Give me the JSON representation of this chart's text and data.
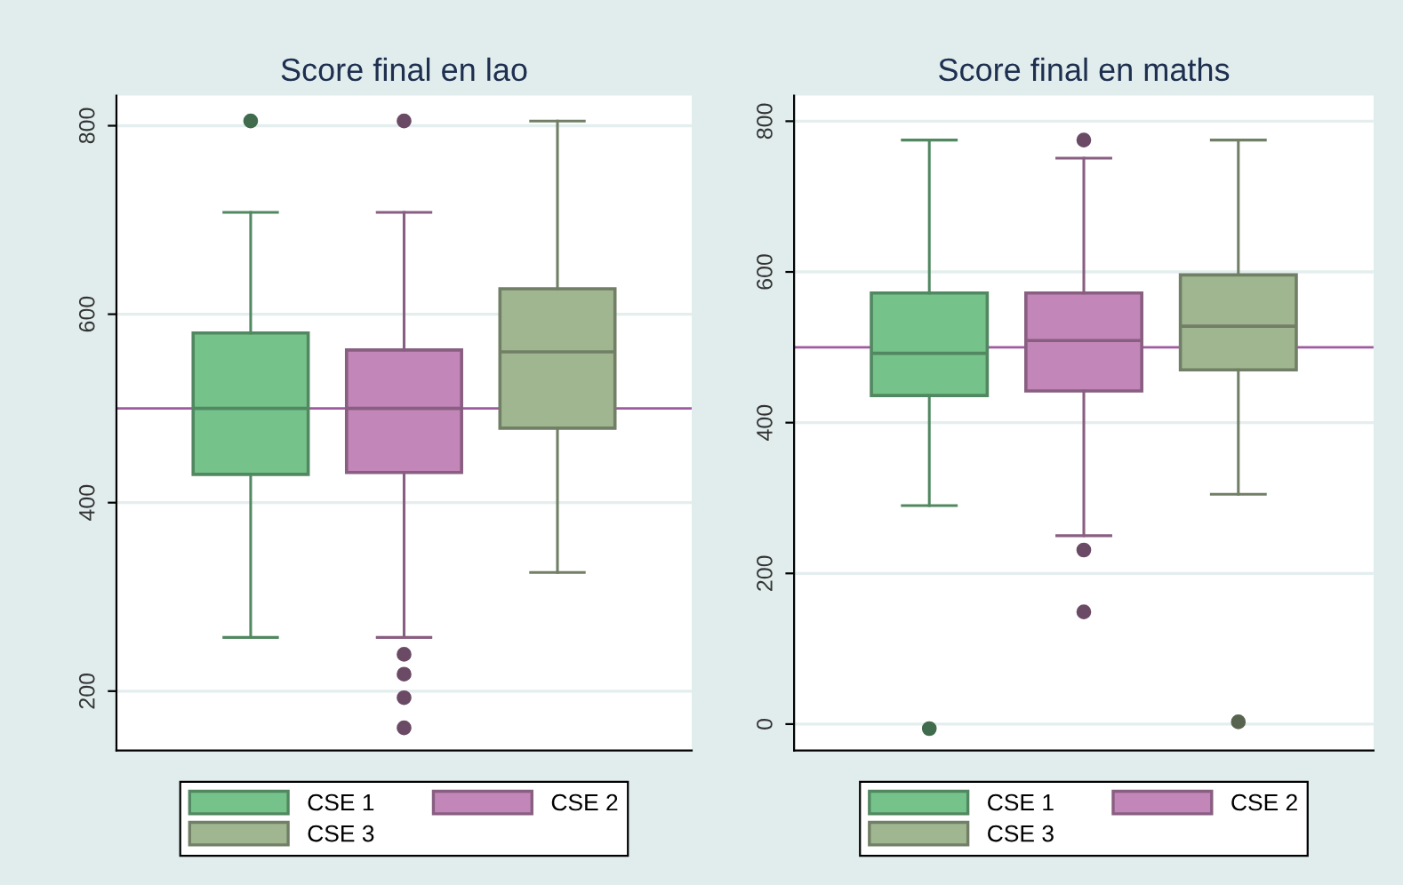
{
  "chart_data": [
    {
      "type": "box",
      "title": "Score final en lao",
      "categories": [
        null
      ],
      "ylim": [
        137,
        832
      ],
      "yticks": [
        200,
        400,
        600,
        800
      ],
      "grid": "y",
      "legend": "bottom",
      "ref_lines": [
        {
          "axis": "y",
          "value": 500,
          "color": "#a05aa0"
        }
      ],
      "series": [
        {
          "name": "CSE 1",
          "color": "#75c38a",
          "boxes": [
            {
              "low": 257,
              "q1": 430,
              "median": 500,
              "q3": 580,
              "high": 708,
              "outliers": [
                805
              ]
            }
          ]
        },
        {
          "name": "CSE 2",
          "color": "#c286b8",
          "boxes": [
            {
              "low": 257,
              "q1": 432,
              "median": 500,
              "q3": 562,
              "high": 708,
              "outliers": [
                805,
                239,
                218,
                193,
                161
              ]
            }
          ]
        },
        {
          "name": "CSE 3",
          "color": "#a0b690",
          "boxes": [
            {
              "low": 326,
              "q1": 479,
              "median": 560,
              "q3": 627,
              "high": 805
            }
          ]
        }
      ]
    },
    {
      "type": "box",
      "title": "Score final en maths",
      "categories": [
        null
      ],
      "ylim": [
        -35,
        834
      ],
      "yticks": [
        0,
        200,
        400,
        600,
        800
      ],
      "grid": "y",
      "legend": "bottom",
      "ref_lines": [
        {
          "axis": "y",
          "value": 500,
          "color": "#a05aa0"
        }
      ],
      "series": [
        {
          "name": "CSE 1",
          "color": "#75c38a",
          "boxes": [
            {
              "low": 290,
              "q1": 436,
              "median": 492,
              "q3": 572,
              "high": 775,
              "outliers": [
                -6
              ]
            }
          ]
        },
        {
          "name": "CSE 2",
          "color": "#c286b8",
          "boxes": [
            {
              "low": 250,
              "q1": 442,
              "median": 509,
              "q3": 572,
              "high": 751,
              "outliers": [
                775,
                231,
                149
              ]
            }
          ]
        },
        {
          "name": "CSE 3",
          "color": "#a0b690",
          "boxes": [
            {
              "low": 305,
              "q1": 470,
              "median": 528,
              "q3": 596,
              "high": 775,
              "outliers": [
                3
              ]
            }
          ]
        }
      ]
    }
  ]
}
